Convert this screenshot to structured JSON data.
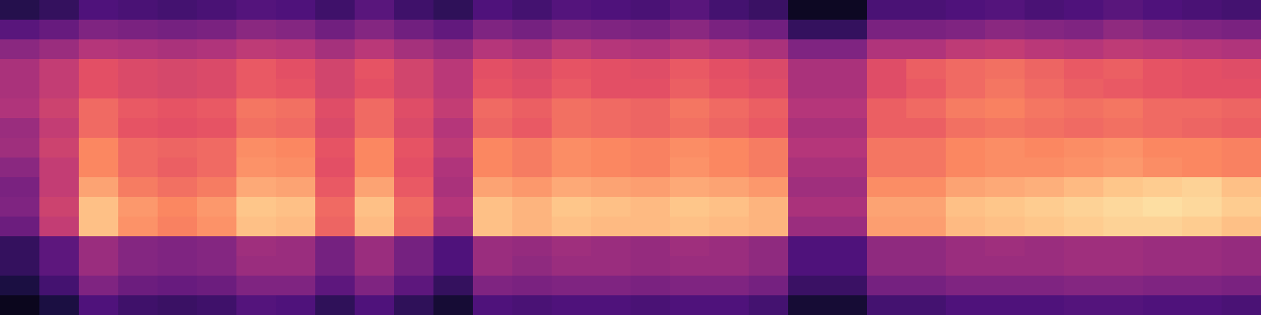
{
  "chart_data": {
    "type": "heatmap",
    "tick_labels": false,
    "color_range": [
      1,
      9
    ],
    "cells": [
      [
        2.2,
        2.5,
        3.0,
        2.9,
        2.8,
        2.9,
        3.1,
        3.0,
        2.7,
        3.2,
        2.7,
        2.4,
        3.0,
        2.8,
        3.1,
        3.0,
        2.9,
        3.2,
        2.8,
        2.6,
        1.5,
        1.5,
        2.9,
        2.9,
        3.0,
        3.1,
        2.9,
        3.0,
        3.2,
        3.0,
        2.9,
        2.8
      ],
      [
        3.2,
        3.5,
        4.0,
        3.9,
        3.8,
        3.9,
        4.2,
        4.1,
        3.7,
        4.1,
        3.7,
        3.4,
        4.0,
        3.8,
        4.1,
        4.0,
        3.9,
        4.2,
        3.9,
        3.7,
        2.5,
        2.5,
        3.9,
        3.9,
        4.0,
        4.2,
        4.1,
        4.0,
        4.3,
        4.1,
        4.0,
        3.9
      ],
      [
        4.2,
        4.5,
        5.0,
        4.9,
        4.8,
        4.9,
        5.2,
        5.1,
        4.7,
        5.1,
        4.7,
        4.4,
        5.0,
        4.8,
        5.2,
        5.0,
        4.9,
        5.2,
        5.0,
        4.8,
        4.0,
        4.0,
        4.9,
        4.9,
        5.2,
        5.3,
        5.1,
        5.0,
        5.2,
        5.1,
        5.0,
        4.9
      ],
      [
        4.8,
        5.3,
        6.0,
        5.8,
        5.7,
        5.8,
        6.2,
        6.0,
        5.6,
        6.1,
        5.6,
        5.1,
        6.0,
        5.8,
        6.1,
        6.0,
        5.9,
        6.2,
        6.0,
        5.8,
        4.8,
        4.8,
        5.9,
        6.3,
        6.5,
        6.6,
        6.4,
        6.2,
        6.3,
        6.1,
        6.0,
        5.9
      ],
      [
        4.8,
        5.3,
        6.0,
        5.8,
        5.7,
        5.8,
        6.2,
        6.1,
        5.6,
        6.0,
        5.6,
        5.1,
        6.1,
        5.9,
        6.2,
        6.0,
        6.0,
        6.3,
        6.1,
        5.9,
        4.8,
        4.8,
        5.9,
        6.2,
        6.5,
        6.7,
        6.5,
        6.3,
        6.2,
        6.1,
        6.0,
        6.0
      ],
      [
        4.9,
        5.5,
        6.5,
        6.2,
        6.1,
        6.2,
        6.7,
        6.6,
        5.9,
        6.5,
        5.9,
        5.3,
        6.5,
        6.3,
        6.6,
        6.5,
        6.4,
        6.7,
        6.5,
        6.3,
        5.0,
        5.0,
        6.3,
        6.5,
        6.8,
        6.9,
        6.7,
        6.6,
        6.7,
        6.5,
        6.5,
        6.4
      ],
      [
        4.5,
        5.3,
        6.5,
        6.1,
        6.0,
        6.1,
        6.6,
        6.5,
        5.8,
        6.5,
        5.8,
        5.0,
        6.4,
        6.2,
        6.6,
        6.5,
        6.4,
        6.6,
        6.4,
        6.2,
        4.8,
        4.8,
        6.3,
        6.3,
        6.6,
        6.7,
        6.6,
        6.5,
        6.6,
        6.5,
        6.4,
        6.3
      ],
      [
        4.6,
        5.5,
        7.0,
        6.5,
        6.4,
        6.5,
        7.1,
        7.0,
        6.1,
        7.0,
        6.1,
        5.2,
        7.0,
        6.8,
        7.1,
        7.0,
        6.9,
        7.1,
        7.0,
        6.8,
        5.0,
        5.0,
        6.7,
        6.7,
        7.0,
        7.1,
        7.0,
        7.1,
        7.2,
        7.0,
        7.0,
        6.9
      ],
      [
        4.2,
        5.3,
        7.0,
        6.5,
        6.3,
        6.5,
        7.2,
        7.1,
        6.0,
        7.0,
        6.0,
        4.9,
        7.0,
        6.8,
        7.1,
        7.0,
        6.9,
        7.2,
        7.0,
        6.8,
        4.8,
        4.8,
        6.7,
        6.7,
        7.0,
        7.1,
        7.1,
        7.2,
        7.3,
        7.1,
        7.0,
        6.9
      ],
      [
        3.9,
        5.3,
        7.5,
        6.8,
        6.6,
        6.8,
        7.6,
        7.5,
        6.2,
        7.5,
        6.2,
        4.8,
        7.5,
        7.3,
        7.6,
        7.5,
        7.4,
        7.6,
        7.5,
        7.3,
        4.6,
        4.6,
        7.1,
        7.1,
        7.5,
        7.6,
        7.7,
        7.9,
        8.1,
        8.2,
        8.3,
        8.0
      ],
      [
        4.0,
        5.5,
        8.0,
        7.3,
        7.0,
        7.3,
        8.1,
        8.0,
        6.5,
        8.0,
        6.5,
        5.0,
        8.0,
        7.8,
        8.1,
        8.0,
        7.9,
        8.1,
        8.0,
        7.8,
        4.8,
        4.8,
        7.5,
        7.5,
        8.0,
        8.1,
        8.2,
        8.3,
        8.4,
        8.5,
        8.4,
        8.2
      ],
      [
        3.6,
        5.3,
        8.0,
        7.2,
        6.9,
        7.2,
        8.0,
        7.9,
        6.4,
        7.9,
        6.4,
        4.7,
        8.0,
        7.8,
        8.0,
        7.9,
        7.9,
        8.0,
        7.9,
        7.8,
        4.5,
        4.5,
        7.4,
        7.4,
        7.9,
        8.0,
        8.1,
        8.2,
        8.3,
        8.3,
        8.2,
        8.0
      ],
      [
        2.5,
        3.3,
        4.5,
        4.1,
        4.0,
        4.1,
        4.6,
        4.5,
        3.8,
        4.5,
        3.8,
        3.0,
        4.5,
        4.4,
        4.6,
        4.5,
        4.4,
        4.6,
        4.5,
        4.3,
        3.0,
        3.0,
        4.3,
        4.3,
        4.5,
        4.6,
        4.5,
        4.6,
        4.6,
        4.5,
        4.5,
        4.4
      ],
      [
        2.5,
        3.3,
        4.5,
        4.1,
        4.0,
        4.1,
        4.5,
        4.5,
        3.8,
        4.5,
        3.8,
        3.0,
        4.5,
        4.3,
        4.5,
        4.5,
        4.4,
        4.5,
        4.5,
        4.3,
        3.0,
        3.0,
        4.3,
        4.3,
        4.5,
        4.5,
        4.5,
        4.6,
        4.6,
        4.5,
        4.5,
        4.4
      ],
      [
        2.0,
        2.8,
        4.0,
        3.6,
        3.5,
        3.6,
        4.0,
        4.0,
        3.3,
        4.0,
        3.3,
        2.5,
        4.0,
        3.9,
        4.0,
        4.0,
        3.9,
        4.0,
        4.0,
        3.8,
        2.6,
        2.6,
        3.8,
        3.8,
        4.0,
        4.0,
        4.0,
        4.1,
        4.1,
        4.0,
        4.0,
        3.9
      ],
      [
        1.4,
        2.0,
        3.0,
        2.7,
        2.6,
        2.7,
        3.1,
        3.0,
        2.4,
        3.0,
        2.4,
        1.8,
        3.0,
        2.9,
        3.0,
        3.0,
        2.9,
        3.0,
        3.0,
        2.8,
        1.8,
        1.8,
        2.8,
        2.8,
        3.0,
        3.0,
        3.0,
        3.1,
        3.1,
        3.0,
        3.0,
        2.9
      ]
    ]
  }
}
